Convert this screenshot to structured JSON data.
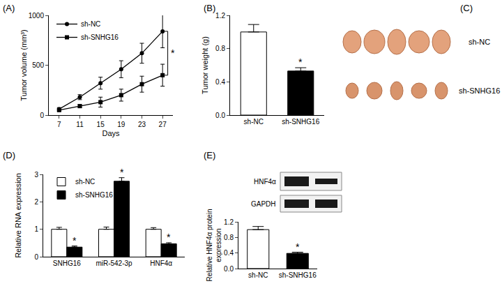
{
  "chart_data": [
    {
      "type": "line",
      "title": "(A)",
      "x_label": "Days",
      "y_label": "Tumor volume (mm³)",
      "x": [
        7,
        11,
        15,
        19,
        23,
        27
      ],
      "series": [
        {
          "name": "sh-NC",
          "color": "#000000",
          "marker": "circle",
          "values": [
            60,
            180,
            320,
            460,
            620,
            840
          ],
          "errors": [
            15,
            25,
            60,
            85,
            100,
            165
          ]
        },
        {
          "name": "sh-SNHG16",
          "color": "#000000",
          "marker": "square",
          "values": [
            50,
            90,
            130,
            200,
            310,
            400
          ],
          "errors": [
            10,
            15,
            50,
            60,
            80,
            110
          ]
        }
      ],
      "xlim": [
        5,
        29
      ],
      "xticks": [
        7,
        11,
        15,
        19,
        23,
        27
      ],
      "ylim": [
        0,
        1000
      ],
      "yticks": [
        0,
        500,
        1000
      ],
      "legend": "top-left",
      "grid": false,
      "annotations": [
        {
          "text": "*"
        }
      ]
    },
    {
      "type": "bar",
      "title": "(B)",
      "y_label": "Tumor weight (g)",
      "categories": [
        "sh-NC",
        "sh-SNHG16"
      ],
      "values": [
        1.0,
        0.53
      ],
      "errors": [
        0.09,
        0.04
      ],
      "colors": [
        "#ffffff",
        "#000000"
      ],
      "ylim": [
        0,
        1.2
      ],
      "yticks": [
        {
          "value": 0,
          "label": "0.0"
        },
        0.4,
        0.8,
        1.2
      ],
      "grid": false,
      "annotations": [
        {
          "text": "*",
          "category": "sh-SNHG16"
        }
      ]
    },
    {
      "type": "bar",
      "title": "(D)",
      "y_label": "Relative RNA expression",
      "categories": [
        "SNHG16",
        "miR-542-3p",
        "HNF4α"
      ],
      "series": [
        {
          "name": "sh-NC",
          "color": "#ffffff",
          "values": [
            1.0,
            1.0,
            1.0
          ],
          "errors": [
            0.07,
            0.08,
            0.06
          ]
        },
        {
          "name": "sh-SNHG16",
          "color": "#000000",
          "values": [
            0.35,
            2.75,
            0.47
          ],
          "errors": [
            0.04,
            0.13,
            0.04
          ]
        }
      ],
      "ylim": [
        0,
        3
      ],
      "yticks": [
        0,
        1,
        2,
        3
      ],
      "legend": "top-left",
      "grid": false,
      "annotations": [
        {
          "text": "*",
          "category": "SNHG16",
          "series": "sh-SNHG16"
        },
        {
          "text": "*",
          "category": "miR-542-3p",
          "series": "sh-SNHG16"
        },
        {
          "text": "*",
          "category": "HNF4α",
          "series": "sh-SNHG16"
        }
      ]
    },
    {
      "type": "bar",
      "title": "(E)",
      "y_label": "Relative HNF4α protein expression",
      "categories": [
        "sh-NC",
        "sh-SNHG16"
      ],
      "values": [
        1.0,
        0.39
      ],
      "errors": [
        0.08,
        0.03
      ],
      "colors": [
        "#ffffff",
        "#000000"
      ],
      "ylim": [
        0,
        1.2
      ],
      "yticks": [
        {
          "value": 0,
          "label": "0.0"
        },
        0.4,
        0.8,
        1.2
      ],
      "grid": false,
      "annotations": [
        {
          "text": "*",
          "category": "sh-SNHG16"
        }
      ],
      "blot": {
        "rows": [
          "HNF4α",
          "GAPDH"
        ]
      }
    }
  ],
  "photo": {
    "title": "(C)",
    "rows": [
      "sh-NC",
      "sh-SNHG16"
    ]
  }
}
